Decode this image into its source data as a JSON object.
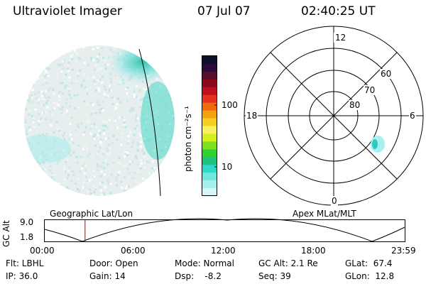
{
  "header": {
    "title": "Ultraviolet Imager",
    "date": "07 Jul 07",
    "time": "02:40:25 UT"
  },
  "colorbar": {
    "unit_label": "photon cm⁻²s⁻¹",
    "ticks": [
      "100",
      "10"
    ],
    "colors": [
      "#0a0f2a",
      "#2a0a3a",
      "#5a0a2a",
      "#8a0a1a",
      "#c01020",
      "#e83020",
      "#f06a10",
      "#f5a010",
      "#f5d020",
      "#f8f060",
      "#d0f020",
      "#7ce020",
      "#30d030",
      "#20c080",
      "#30d8c8",
      "#70e8e0",
      "#a8f0f0",
      "#d8f5f5"
    ]
  },
  "polar": {
    "mlt_labels": [
      "12",
      "18",
      "6",
      "0"
    ],
    "lat_labels": [
      "60",
      "70",
      "80"
    ]
  },
  "timeline": {
    "y_label": "GC Alt",
    "y_ticks": [
      "9.0",
      "1.8"
    ],
    "left_title": "Geographic Lat/Lon",
    "right_title": "Apex MLat/MLT",
    "x_ticks": [
      "00:00",
      "06:00",
      "12:00",
      "18:00",
      "23:59"
    ],
    "marker_fraction": 0.112
  },
  "footer": {
    "flt": "Flt: LBHL",
    "ip": "IP: 36.0",
    "door": "Door: Open",
    "gain": "Gain: 14",
    "mode": "Mode: Normal",
    "dsp": "Dsp:    -8.2",
    "gcalt": "GC Alt: 2.1 Re",
    "seq": "Seq: 39",
    "glat": "GLat:  67.4",
    "glon": "GLon:  12.8"
  }
}
